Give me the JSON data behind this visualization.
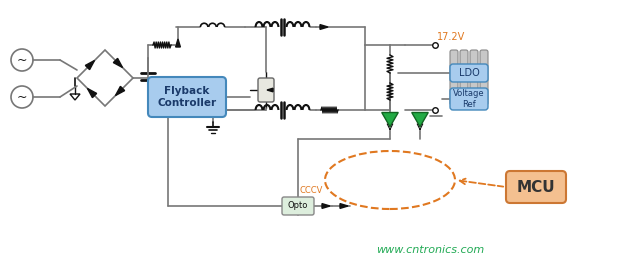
{
  "bg_color": "#ffffff",
  "lc": "#777777",
  "blk": "#111111",
  "title_text": "www.cntronics.com",
  "title_color": "#22aa55",
  "voltage_label": "17.2V",
  "voltage_color": "#e07820",
  "cccv_label": "CCCV",
  "orange": "#e07820",
  "flyback_label": "Flyback\nController",
  "flyback_fc": "#a8ccee",
  "flyback_ec": "#4488bb",
  "ldo_label": "LDO",
  "ldo_fc": "#a8ccee",
  "ldo_ec": "#4488bb",
  "vref_label": "Voltage\nRef",
  "vref_fc": "#a8ccee",
  "vref_ec": "#4488bb",
  "mcu_label": "MCU",
  "mcu_fc": "#f4c090",
  "mcu_ec": "#cc7733",
  "opto_label": "Opto",
  "opto_fc": "#ddeedd",
  "opto_ec": "#888888",
  "green_tri": "#22aa44",
  "green_tri_ec": "#116622"
}
